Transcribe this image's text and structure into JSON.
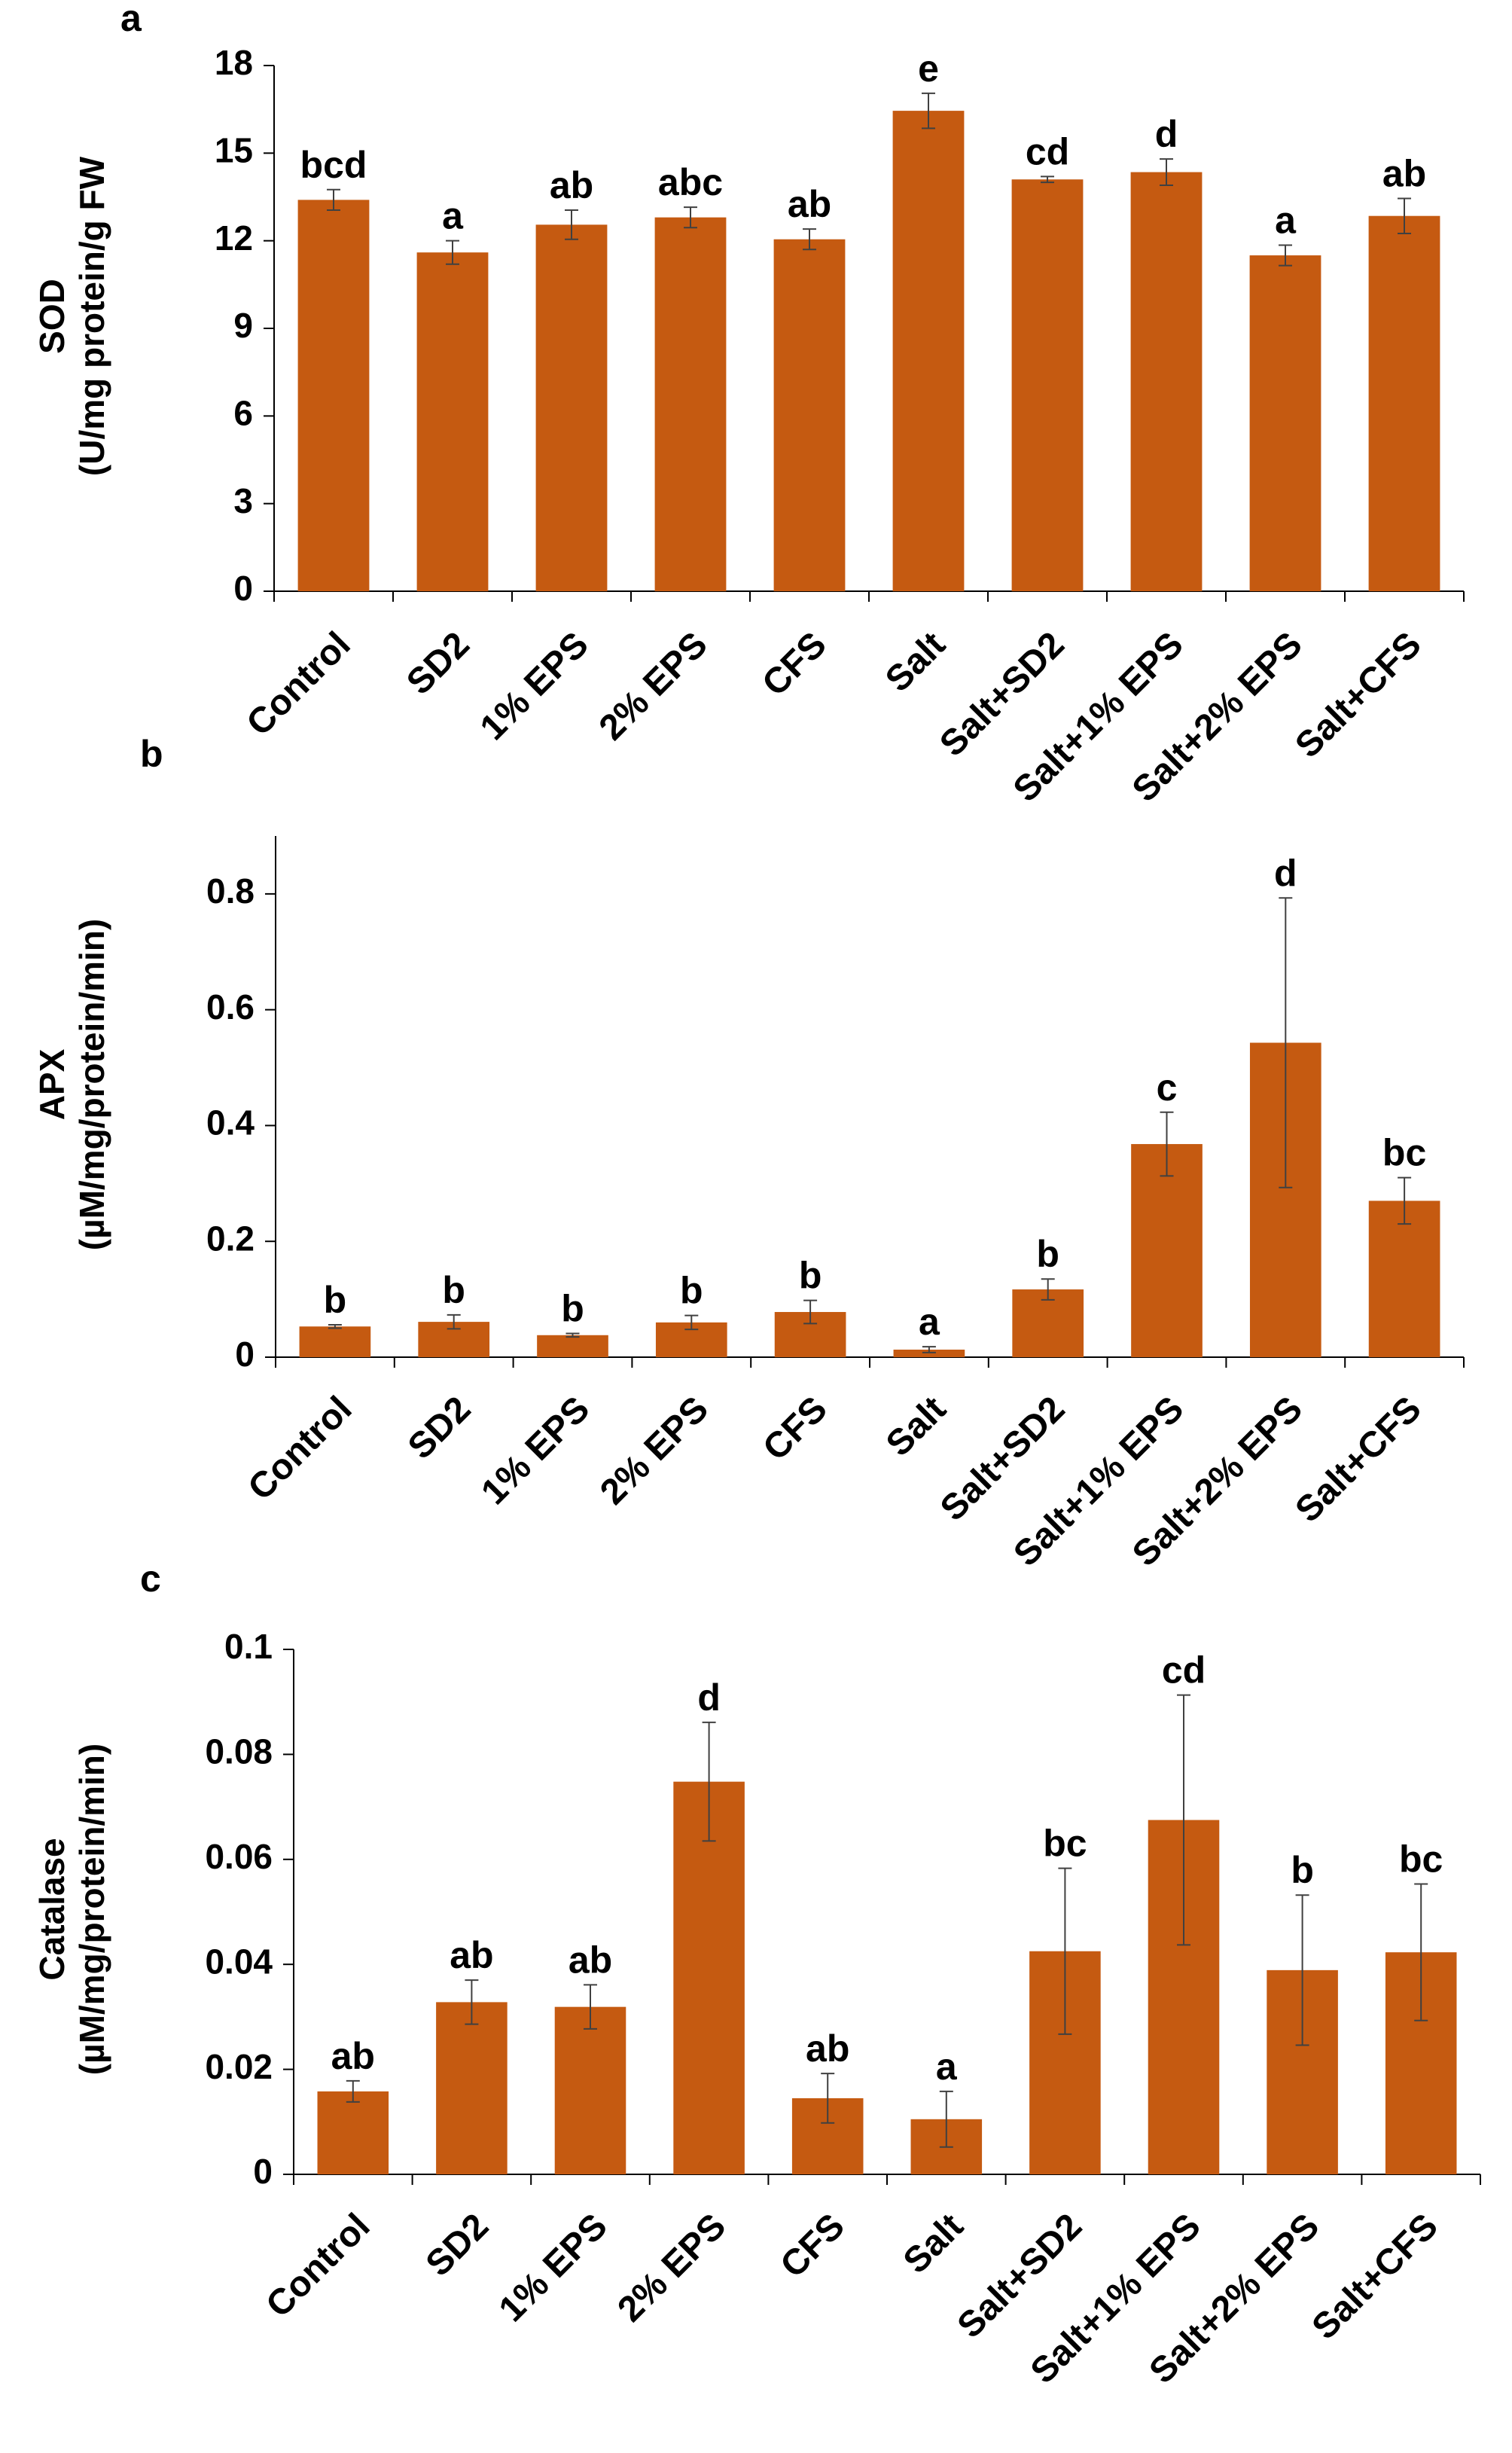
{
  "colors": {
    "bar": "#C55A11",
    "axis": "#000000",
    "error_bar": "#404040"
  },
  "chart_data": [
    {
      "type": "bar",
      "panel_letter": "a",
      "ylabel_line1": "SOD",
      "ylabel_line2": "(U/mg protein/g FW",
      "ylim": [
        0,
        18
      ],
      "yticks": [
        0,
        3,
        6,
        9,
        12,
        15,
        18
      ],
      "ytick_labels": [
        "0",
        "3",
        "6",
        "9",
        "12",
        "15",
        "18"
      ],
      "categories": [
        "Control",
        "SD2",
        "1% EPS",
        "2% EPS",
        "CFS",
        "Salt",
        "Salt+SD2",
        "Salt+1% EPS",
        "Salt+2% EPS",
        "Salt+CFS"
      ],
      "values": [
        13.4,
        11.6,
        12.55,
        12.8,
        12.05,
        16.45,
        14.1,
        14.35,
        11.5,
        12.85
      ],
      "errors": [
        0.35,
        0.4,
        0.5,
        0.35,
        0.35,
        0.6,
        0.1,
        0.45,
        0.35,
        0.6
      ],
      "significance": [
        "bcd",
        "a",
        "ab",
        "abc",
        "ab",
        "e",
        "cd",
        "d",
        "a",
        "ab"
      ],
      "grid": false,
      "legend": false
    },
    {
      "type": "bar",
      "panel_letter": "b",
      "ylabel_line1": "APX",
      "ylabel_line2": "(µM/mg/protein/min)",
      "ylim": [
        0,
        0.9
      ],
      "yticks": [
        0,
        0.2,
        0.4,
        0.6,
        0.8
      ],
      "ytick_labels": [
        "0",
        "0.2",
        "0.4",
        "0.6",
        "0.8"
      ],
      "categories": [
        "Control",
        "SD2",
        "1% EPS",
        "2% EPS",
        "CFS",
        "Salt",
        "Salt+SD2",
        "Salt+1% EPS",
        "Salt+2% EPS",
        "Salt+CFS"
      ],
      "values": [
        0.053,
        0.061,
        0.038,
        0.06,
        0.078,
        0.013,
        0.117,
        0.368,
        0.543,
        0.27
      ],
      "errors": [
        0.003,
        0.012,
        0.003,
        0.012,
        0.02,
        0.005,
        0.018,
        0.055,
        0.25,
        0.04
      ],
      "significance": [
        "b",
        "b",
        "b",
        "b",
        "b",
        "a",
        "b",
        "c",
        "d",
        "bc"
      ],
      "grid": false,
      "legend": false
    },
    {
      "type": "bar",
      "panel_letter": "c",
      "ylabel_line1": "Catalase",
      "ylabel_line2": "(µM/mg/protein/min)",
      "ylim": [
        0,
        0.1
      ],
      "yticks": [
        0,
        0.02,
        0.04,
        0.06,
        0.08,
        0.1
      ],
      "ytick_labels": [
        "0",
        "0.02",
        "0.04",
        "0.06",
        "0.08",
        "0.1"
      ],
      "categories": [
        "Control",
        "SD2",
        "1% EPS",
        "2% EPS",
        "CFS",
        "Salt",
        "Salt+SD2",
        "Salt+1% EPS",
        "Salt+2% EPS",
        "Salt+CFS"
      ],
      "values": [
        0.0158,
        0.0328,
        0.0319,
        0.0748,
        0.0145,
        0.0105,
        0.0425,
        0.0675,
        0.0389,
        0.0423
      ],
      "errors": [
        0.002,
        0.0042,
        0.0042,
        0.0113,
        0.0047,
        0.0053,
        0.0158,
        0.0238,
        0.0143,
        0.013
      ],
      "significance": [
        "ab",
        "ab",
        "ab",
        "d",
        "ab",
        "a",
        "bc",
        "cd",
        "b",
        "bc"
      ],
      "grid": false,
      "legend": false
    }
  ]
}
